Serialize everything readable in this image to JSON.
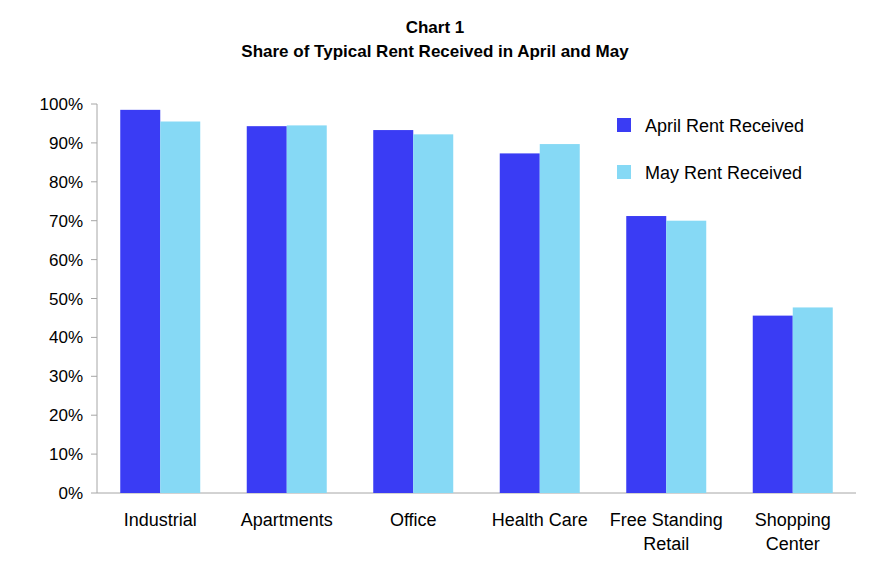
{
  "chart_data": {
    "type": "bar",
    "title": "Chart 1",
    "subtitle": "Share of Typical Rent Received in April and May",
    "categories": [
      "Industrial",
      "Apartments",
      "Office",
      "Health Care",
      "Free Standing Retail",
      "Shopping Center"
    ],
    "series": [
      {
        "name": "April Rent Received",
        "color": "#3a3cf4",
        "values": [
          98.5,
          94.3,
          93.3,
          87.3,
          71.2,
          45.6
        ]
      },
      {
        "name": "May Rent Received",
        "color": "#86d9f5",
        "values": [
          95.5,
          94.5,
          92.2,
          89.7,
          70.0,
          47.7
        ]
      }
    ],
    "ylim": [
      0,
      100
    ],
    "yticks": [
      {
        "value": 0,
        "label": "0%"
      },
      {
        "value": 10,
        "label": "10%"
      },
      {
        "value": 20,
        "label": "20%"
      },
      {
        "value": 30,
        "label": "30%"
      },
      {
        "value": 40,
        "label": "40%"
      },
      {
        "value": 50,
        "label": "50%"
      },
      {
        "value": 60,
        "label": "60%"
      },
      {
        "value": 70,
        "label": "70%"
      },
      {
        "value": 80,
        "label": "80%"
      },
      {
        "value": 90,
        "label": "90%"
      },
      {
        "value": 100,
        "label": "100%"
      }
    ],
    "grid": false,
    "legend": "upper right"
  }
}
